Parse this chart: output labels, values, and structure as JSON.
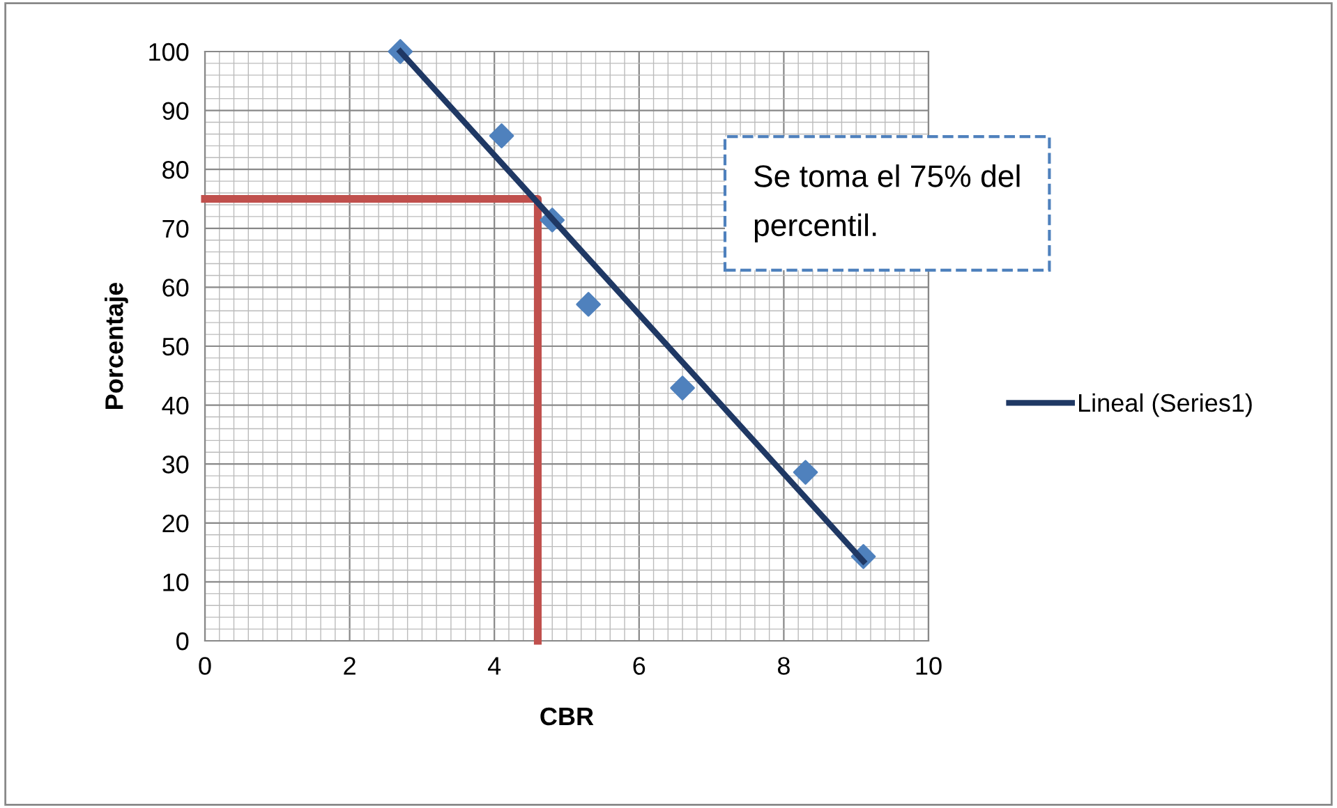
{
  "chart_data": {
    "type": "scatter",
    "xlabel": "CBR",
    "ylabel": "Porcentaje",
    "xlim": [
      0,
      10
    ],
    "xticks": [
      0,
      2,
      4,
      6,
      8,
      10
    ],
    "ylim": [
      0,
      100
    ],
    "yticks": [
      0,
      10,
      20,
      30,
      40,
      50,
      60,
      70,
      80,
      90,
      100
    ],
    "grid": true,
    "legend": "right",
    "series": [
      {
        "marker": "diamond",
        "color": "#4f81bd",
        "x": [
          2.7,
          4.1,
          4.8,
          5.3,
          6.6,
          8.3,
          9.1
        ],
        "values": [
          100,
          85.7,
          71.4,
          57.1,
          42.9,
          28.6,
          14.3
        ]
      },
      {
        "type": "line",
        "name": "Lineal (Series1)",
        "color": "#1f3864",
        "x": [
          2.7,
          9.1
        ],
        "values": [
          100,
          13.5
        ]
      },
      {
        "type": "line",
        "color": "#c0504d",
        "x": [
          0,
          4.6,
          4.6
        ],
        "values": [
          75,
          75,
          0
        ]
      }
    ],
    "annotations": [
      "Se toma el 75% del\npercentil."
    ]
  }
}
